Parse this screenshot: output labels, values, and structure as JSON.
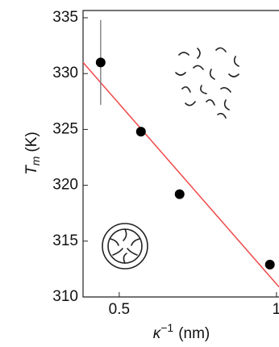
{
  "chart_data": {
    "type": "scatter",
    "x": [
      0.441,
      0.569,
      0.692,
      0.979
    ],
    "values": [
      331.0,
      324.8,
      319.2,
      312.9
    ],
    "errors": [
      3.8,
      null,
      null,
      null
    ],
    "color": "#000000",
    "fit": {
      "x": [
        0.385,
        1.008
      ],
      "y": [
        331.0,
        310.9
      ],
      "color": "#f04848"
    },
    "xlim": [
      0.385,
      1.008
    ],
    "ylim": [
      310,
      335.65
    ],
    "xticks": [
      0.5,
      1
    ],
    "yticks": [
      310,
      315,
      320,
      325,
      330,
      335
    ],
    "x_label": {
      "symbol": "κ",
      "superscript": "−1",
      "unit": "(nm)"
    },
    "y_label": {
      "symbol": "T",
      "subscript": "m",
      "unit": "(K)"
    }
  }
}
